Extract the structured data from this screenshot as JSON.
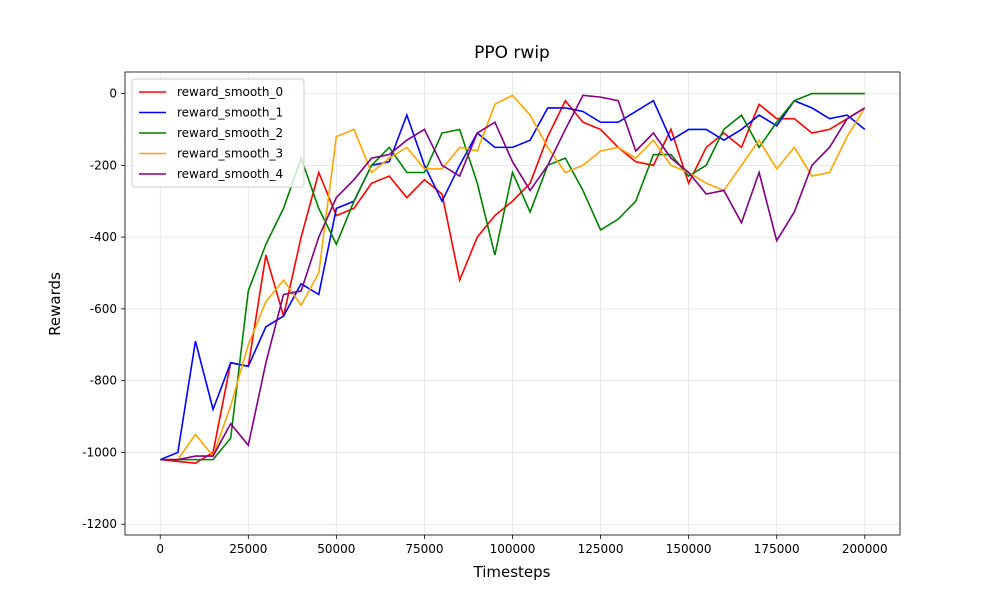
{
  "chart_data": {
    "type": "line",
    "title": "PPO rwip",
    "x_label": "Timesteps",
    "y_label": "Rewards",
    "x": [
      0,
      5000,
      10000,
      15000,
      20000,
      25000,
      30000,
      35000,
      40000,
      45000,
      50000,
      55000,
      60000,
      65000,
      70000,
      75000,
      80000,
      85000,
      90000,
      95000,
      100000,
      105000,
      110000,
      115000,
      120000,
      125000,
      130000,
      135000,
      140000,
      145000,
      150000,
      155000,
      160000,
      165000,
      170000,
      175000,
      180000,
      185000,
      190000,
      195000,
      200000
    ],
    "series": [
      {
        "name": "reward_smooth_0",
        "color": "red",
        "values": [
          -1020,
          -1025,
          -1030,
          -1000,
          -750,
          -760,
          -450,
          -620,
          -400,
          -220,
          -340,
          -320,
          -250,
          -230,
          -290,
          -240,
          -280,
          -520,
          -400,
          -340,
          -300,
          -250,
          -120,
          -20,
          -80,
          -100,
          -150,
          -190,
          -200,
          -100,
          -250,
          -150,
          -110,
          -150,
          -30,
          -70,
          -70,
          -110,
          -100,
          -70,
          -40
        ]
      },
      {
        "name": "reward_smooth_1",
        "color": "blue",
        "values": [
          -1020,
          -1000,
          -690,
          -880,
          -750,
          -760,
          -650,
          -620,
          -530,
          -560,
          -320,
          -300,
          -200,
          -190,
          -60,
          -200,
          -300,
          -200,
          -110,
          -150,
          -150,
          -130,
          -40,
          -40,
          -50,
          -80,
          -80,
          -50,
          -20,
          -130,
          -100,
          -100,
          -130,
          -100,
          -60,
          -90,
          -20,
          -40,
          -70,
          -60,
          -100
        ]
      },
      {
        "name": "reward_smooth_2",
        "color": "green",
        "values": [
          -1020,
          -1020,
          -1020,
          -1020,
          -960,
          -550,
          -420,
          -320,
          -180,
          -320,
          -420,
          -300,
          -200,
          -150,
          -220,
          -220,
          -110,
          -100,
          -250,
          -450,
          -220,
          -330,
          -200,
          -180,
          -270,
          -380,
          -350,
          -300,
          -170,
          -170,
          -230,
          -200,
          -100,
          -60,
          -150,
          -80,
          -20,
          0,
          0,
          0,
          0
        ]
      },
      {
        "name": "reward_smooth_3",
        "color": "orange",
        "values": [
          -1020,
          -1020,
          -950,
          -1010,
          -870,
          -700,
          -580,
          -520,
          -590,
          -500,
          -120,
          -100,
          -220,
          -180,
          -150,
          -210,
          -210,
          -150,
          -160,
          -30,
          -5,
          -60,
          -150,
          -220,
          -200,
          -160,
          -150,
          -180,
          -130,
          -200,
          -220,
          -250,
          -270,
          -200,
          -130,
          -210,
          -150,
          -230,
          -220,
          -120,
          -40
        ]
      },
      {
        "name": "reward_smooth_4",
        "color": "purple",
        "values": [
          -1020,
          -1020,
          -1010,
          -1010,
          -920,
          -980,
          -750,
          -560,
          -550,
          -400,
          -290,
          -240,
          -180,
          -170,
          -130,
          -100,
          -200,
          -230,
          -110,
          -80,
          -190,
          -270,
          -200,
          -100,
          -5,
          -10,
          -20,
          -160,
          -110,
          -180,
          -220,
          -280,
          -270,
          -360,
          -220,
          -410,
          -330,
          -200,
          -150,
          -70,
          -40
        ]
      }
    ],
    "xlim": [
      -10000,
      210000
    ],
    "ylim": [
      -1230,
      60
    ],
    "xticks": [
      0,
      25000,
      50000,
      75000,
      100000,
      125000,
      150000,
      175000,
      200000
    ],
    "yticks": [
      -1200,
      -1000,
      -800,
      -600,
      -400,
      -200,
      0
    ],
    "grid": true,
    "legend": "upper left"
  }
}
